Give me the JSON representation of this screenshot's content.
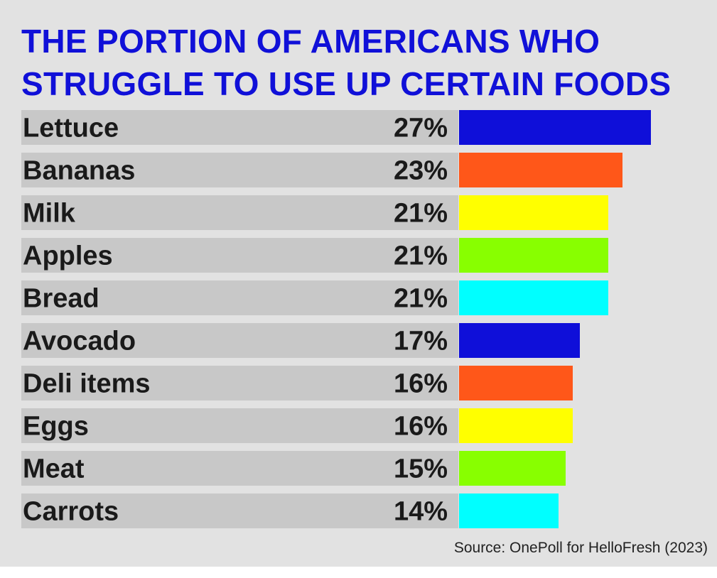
{
  "chart_data": {
    "type": "bar",
    "orientation": "horizontal",
    "title": "THE PORTION OF AMERICANS WHO STRUGGLE TO USE UP CERTAIN FOODS",
    "categories": [
      "Lettuce",
      "Bananas",
      "Milk",
      "Apples",
      "Bread",
      "Avocado",
      "Deli items",
      "Eggs",
      "Meat",
      "Carrots"
    ],
    "values": [
      27,
      23,
      21,
      21,
      21,
      17,
      16,
      16,
      15,
      14
    ],
    "value_labels": [
      "27%",
      "23%",
      "21%",
      "21%",
      "21%",
      "17%",
      "16%",
      "16%",
      "15%",
      "14%"
    ],
    "unit": "%",
    "colors": [
      "#0f0fd9",
      "#ff5719",
      "#ffff00",
      "#88ff00",
      "#00ffff",
      "#0f0fd9",
      "#ff5719",
      "#ffff00",
      "#88ff00",
      "#00ffff"
    ],
    "grid": false,
    "legend": "none",
    "source": "Source: OnePoll for HelloFresh (2023)"
  }
}
